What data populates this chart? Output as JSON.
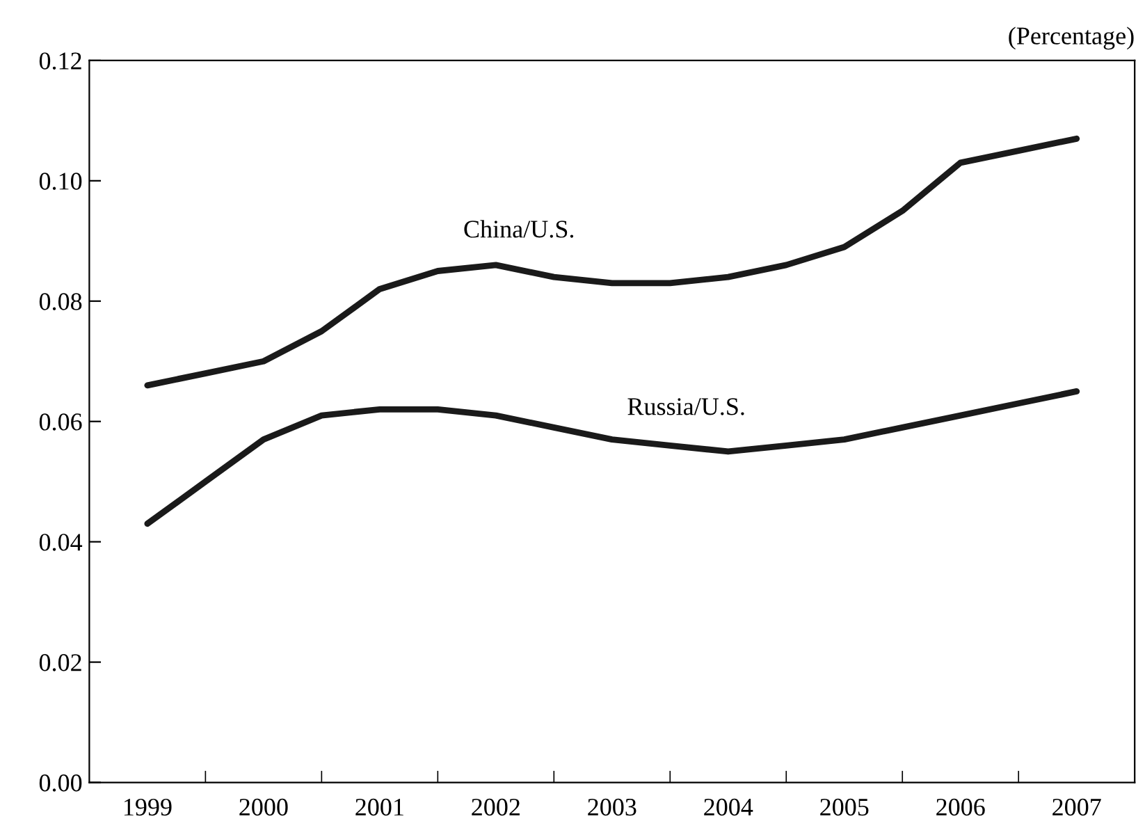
{
  "chart_data": {
    "type": "line",
    "ylabel": "(Percentage)",
    "x": [
      1999,
      1999.5,
      2000,
      2000.5,
      2001,
      2001.5,
      2002,
      2002.5,
      2003,
      2003.5,
      2004,
      2004.5,
      2005,
      2005.5,
      2006,
      2006.5,
      2007
    ],
    "series": [
      {
        "name": "China/U.S.",
        "color": "#1a1a1a",
        "values": [
          0.066,
          0.068,
          0.07,
          0.075,
          0.082,
          0.085,
          0.086,
          0.084,
          0.083,
          0.083,
          0.084,
          0.086,
          0.089,
          0.095,
          0.103,
          0.105,
          0.107
        ]
      },
      {
        "name": "Russia/U.S.",
        "color": "#1a1a1a",
        "values": [
          0.043,
          0.05,
          0.057,
          0.061,
          0.062,
          0.062,
          0.061,
          0.059,
          0.057,
          0.056,
          0.055,
          0.056,
          0.057,
          0.059,
          0.061,
          0.063,
          0.065
        ]
      }
    ],
    "xlim": [
      1998.5,
      2007.5
    ],
    "xticks": [
      {
        "value": 1999,
        "label": "1999"
      },
      {
        "value": 1999.5,
        "label": null
      },
      {
        "value": 2000,
        "label": "2000"
      },
      {
        "value": 2000.5,
        "label": null
      },
      {
        "value": 2001,
        "label": "2001"
      },
      {
        "value": 2001.5,
        "label": null
      },
      {
        "value": 2002,
        "label": "2002"
      },
      {
        "value": 2002.5,
        "label": null
      },
      {
        "value": 2003,
        "label": "2003"
      },
      {
        "value": 2003.5,
        "label": null
      },
      {
        "value": 2004,
        "label": "2004"
      },
      {
        "value": 2004.5,
        "label": null
      },
      {
        "value": 2005,
        "label": "2005"
      },
      {
        "value": 2005.5,
        "label": null
      },
      {
        "value": 2006,
        "label": "2006"
      },
      {
        "value": 2006.5,
        "label": null
      },
      {
        "value": 2007,
        "label": "2007"
      }
    ],
    "ylim": [
      0,
      0.12
    ],
    "yticks": [
      {
        "value": 0,
        "label": "0.00"
      },
      {
        "value": 0.02,
        "label": "0.02"
      },
      {
        "value": 0.04,
        "label": "0.04"
      },
      {
        "value": 0.06,
        "label": "0.06"
      },
      {
        "value": 0.08,
        "label": "0.08"
      },
      {
        "value": 0.1,
        "label": "0.10"
      },
      {
        "value": 0.12,
        "label": "0.12"
      }
    ],
    "grid": false,
    "legend": false,
    "marker": "none",
    "line_style": "solid"
  }
}
